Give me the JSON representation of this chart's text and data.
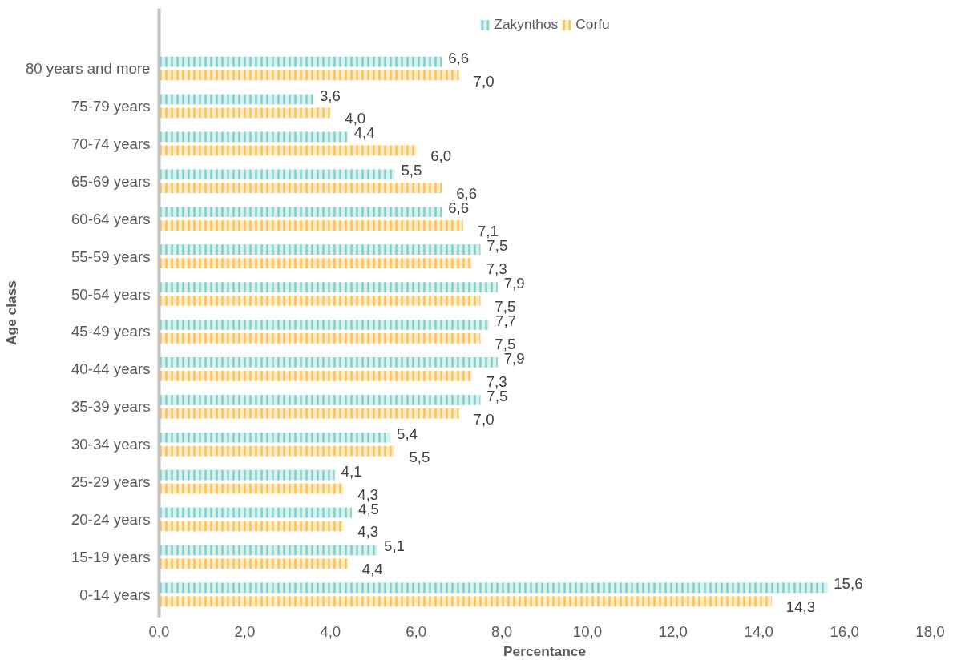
{
  "chart_data": {
    "type": "bar",
    "orientation": "horizontal",
    "xlabel": "Percentance",
    "ylabel": "Age class",
    "categories": [
      "80 years and more",
      "75-79 years",
      "70-74 years",
      "65-69 years",
      "60-64 years",
      "55-59 years",
      "50-54 years",
      "45-49 years",
      "40-44 years",
      "35-39 years",
      "30-34 years",
      "25-29 years",
      "20-24 years",
      "15-19 years",
      "0-14 years"
    ],
    "series": [
      {
        "name": "Zakynthos",
        "color": "#7fcfc9",
        "values": [
          6.6,
          3.6,
          4.4,
          5.5,
          6.6,
          7.5,
          7.9,
          7.7,
          7.9,
          7.5,
          5.4,
          4.1,
          4.5,
          5.1,
          15.6
        ],
        "value_labels": [
          "6,6",
          "3,6",
          "4,4",
          "5,5",
          "6,6",
          "7,5",
          "7,9",
          "7,7",
          "7,9",
          "7,5",
          "5,4",
          "4,1",
          "4,5",
          "5,1",
          "15,6"
        ]
      },
      {
        "name": "Corfu",
        "color": "#ffc04d",
        "values": [
          7.0,
          4.0,
          6.0,
          6.6,
          7.1,
          7.3,
          7.5,
          7.5,
          7.3,
          7.0,
          5.5,
          4.3,
          4.3,
          4.4,
          14.3
        ],
        "value_labels": [
          "7,0",
          "4,0",
          "6,0",
          "6,6",
          "7,1",
          "7,3",
          "7,5",
          "7,5",
          "7,3",
          "7,0",
          "5,5",
          "4,3",
          "4,3",
          "4,4",
          "14,3"
        ]
      }
    ],
    "xlim": [
      0,
      18
    ],
    "xticks": [
      {
        "value": 0,
        "label": "0,0"
      },
      {
        "value": 2,
        "label": "2,0"
      },
      {
        "value": 4,
        "label": "4,0"
      },
      {
        "value": 6,
        "label": "6,0"
      },
      {
        "value": 8,
        "label": "8,0"
      },
      {
        "value": 10,
        "label": "10,0"
      },
      {
        "value": 12,
        "label": "12,0"
      },
      {
        "value": 14,
        "label": "14,0"
      },
      {
        "value": 16,
        "label": "16,0"
      },
      {
        "value": 18,
        "label": "18,0"
      }
    ],
    "grid": false,
    "legend": "top"
  }
}
